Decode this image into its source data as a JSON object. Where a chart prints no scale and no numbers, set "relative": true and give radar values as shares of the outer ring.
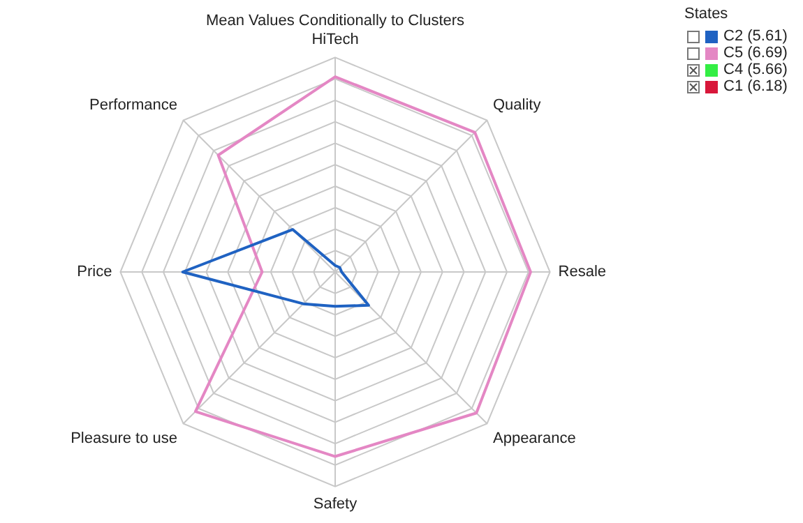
{
  "chart_data": {
    "type": "radar",
    "title": "Mean Values Conditionally to Clusters",
    "legend_title": "States",
    "relative": true,
    "legend": "top right",
    "grid": true,
    "marker": "none",
    "categories": [
      "HiTech",
      "Quality",
      "Resale",
      "Appearance",
      "Safety",
      "Pleasure to use",
      "Price",
      "Performance"
    ],
    "series": [
      {
        "name": "C2 (5.61)",
        "color": "#1f62c2",
        "values": [
          0.03,
          0.03,
          0.03,
          0.22,
          0.16,
          0.21,
          0.71,
          0.28
        ]
      },
      {
        "name": "C5 (6.69)",
        "color": "#e487c4",
        "values": [
          0.91,
          0.92,
          0.91,
          0.93,
          0.86,
          0.92,
          0.34,
          0.77
        ]
      },
      {
        "name": "C4 (5.66)",
        "color": "#33ee44",
        "values": [
          null,
          null,
          null,
          null,
          null,
          null,
          null,
          null
        ]
      },
      {
        "name": "C1 (6.18)",
        "color": "#d8173a",
        "values": [
          null,
          null,
          null,
          null,
          null,
          null,
          null,
          null
        ]
      }
    ]
  }
}
